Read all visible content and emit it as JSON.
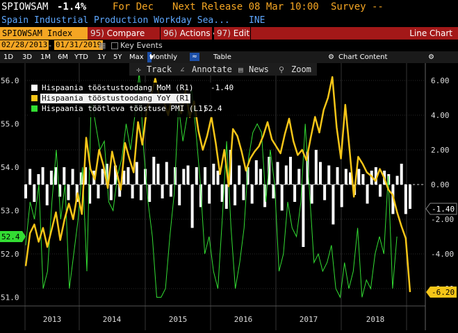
{
  "header": {
    "ticker": "SPIOWSAM",
    "value": "-1.4%",
    "period": "For Dec",
    "next_release": "Next Release 08 Mar 10:00",
    "survey": "Survey --",
    "description": "Spain Industrial Production Workday Sea...",
    "source": "INE"
  },
  "toolbar": {
    "index_label": "SPIOWSAM Index",
    "compare": "Compare",
    "actions": "Actions",
    "edit": "Edit",
    "chart_kind": "Line Chart",
    "compare_num": "95)",
    "actions_num": "96)",
    "edit_num": "97)",
    "date_from": "02/28/2013",
    "date_to": "01/31/2019",
    "key_events": "Key Events"
  },
  "range": {
    "buttons": [
      "1D",
      "3D",
      "1M",
      "6M",
      "YTD",
      "1Y",
      "5Y",
      "Max"
    ],
    "frequency": "Monthly",
    "table": "Table",
    "chart_content": "Chart Content"
  },
  "tools": {
    "track": "Track",
    "annotate": "Annotate",
    "news": "News",
    "zoom": "Zoom"
  },
  "legend": [
    {
      "name": "Hispaania tööstustoodang MoM (R1)",
      "last": "-1.40",
      "color": "#ffffff"
    },
    {
      "name": "Hispaania tööstustoodang YoY (R1)",
      "last": "-6.20",
      "color": "#f5c518"
    },
    {
      "name": "Hispaania töötleva tööstuse PMI (L1)",
      "last": "52.4",
      "color": "#33dd33"
    }
  ],
  "chart_data": {
    "type": "line",
    "x_labels": [
      "2013",
      "2014",
      "2015",
      "2016",
      "2017",
      "2018"
    ],
    "left_axis": {
      "ticks": [
        "56.0",
        "55.0",
        "54.0",
        "53.0",
        "52.0",
        "51.0"
      ],
      "range": [
        50.8,
        56.4
      ]
    },
    "right_axis": {
      "ticks": [
        "6.00",
        "4.00",
        "2.00",
        "0.00",
        "-2.00",
        "-4.00",
        "-6.00"
      ],
      "range": [
        -7.0,
        7.0
      ]
    },
    "last_values": {
      "mom": "-1.40",
      "yoy": "-6.20",
      "pmi": "52.4"
    },
    "series": [
      {
        "name": "Hispaania tööstustoodang MoM (R1)",
        "type": "bar",
        "values": [
          -0.8,
          0.9,
          -1.0,
          0.6,
          1.0,
          -1.2,
          0.8,
          1.0,
          -0.7,
          1.0,
          -0.9,
          0.9,
          -1.0,
          0.7,
          1.0,
          -1.1,
          0.8,
          -0.8,
          0.9,
          1.2,
          -0.9,
          1.1,
          -0.7,
          0.8,
          1.0,
          -0.8,
          1.3,
          -0.9,
          0.9,
          -1.0,
          1.6,
          1.2,
          -0.8,
          1.3,
          -0.7,
          1.0,
          -1.2,
          0.9,
          1.1,
          -2.5,
          1.0,
          -1.3,
          1.0,
          -1.1,
          1.2,
          0.8,
          -1.0,
          -1.4,
          2.0,
          -1.2,
          1.1,
          -0.9,
          1.0,
          -1.1,
          1.4,
          0.9,
          -1.3,
          1.6,
          -0.8,
          1.3,
          -1.5,
          1.1,
          1.6,
          -1.0,
          0.9,
          -3.6,
          1.9,
          -1.1,
          2.0,
          1.3,
          -0.9,
          1.1,
          -2.3,
          1.0,
          -1.3,
          0.9,
          0.7,
          -0.6,
          0.9,
          0.6,
          -1.1,
          0.8,
          1.0,
          -0.7,
          0.8,
          0.6,
          -1.7,
          0.5,
          1.2,
          -1.7,
          -1.4
        ]
      },
      {
        "name": "Hispaania tööstustoodang YoY (R1)",
        "type": "line",
        "values": [
          -4.7,
          -2.8,
          -2.3,
          -3.3,
          -2.5,
          -3.6,
          -2.6,
          -1.6,
          -3.2,
          -2.0,
          -1.1,
          -2.0,
          -0.5,
          -1.7,
          2.7,
          0.9,
          0.3,
          2.0,
          1.1,
          -0.2,
          1.9,
          0.8,
          -0.3,
          2.4,
          1.5,
          0.7,
          3.6,
          2.3,
          4.3,
          5.1,
          6.1,
          5.0,
          4.8,
          4.0,
          5.2,
          5.1,
          4.1,
          5.4,
          3.9,
          4.8,
          3.1,
          2.0,
          2.8,
          3.9,
          2.4,
          0.6,
          2.0,
          -0.1,
          3.2,
          2.8,
          1.9,
          0.8,
          1.5,
          1.9,
          2.2,
          2.8,
          3.6,
          2.6,
          2.2,
          1.8,
          2.9,
          3.8,
          2.5,
          1.7,
          2.0,
          1.4,
          2.7,
          3.9,
          3.0,
          4.3,
          5.0,
          6.2,
          3.3,
          1.5,
          4.6,
          2.0,
          -0.7,
          1.6,
          1.2,
          0.7,
          0.5,
          0.2,
          0.9,
          0.4,
          -0.3,
          -0.6,
          -1.6,
          -2.4,
          -3.1,
          -6.2
        ]
      },
      {
        "name": "Hispaania töötleva tööstuse PMI (L1)",
        "type": "line",
        "values": [
          52.2,
          53.2,
          52.8,
          53.6,
          51.2,
          51.6,
          53.2,
          54.4,
          52.8,
          53.6,
          51.2,
          52.0,
          52.8,
          54.0,
          51.6,
          55.6,
          55.0,
          54.4,
          54.6,
          53.2,
          53.0,
          53.8,
          54.2,
          55.0,
          54.4,
          55.2,
          56.2,
          54.4,
          53.2,
          52.4,
          51.0,
          51.0,
          51.2,
          52.4,
          53.4,
          55.4,
          54.6,
          55.2,
          55.8,
          54.8,
          53.6,
          52.0,
          52.4,
          51.6,
          51.2,
          52.8,
          54.6,
          52.6,
          51.2,
          51.8,
          52.6,
          54.2,
          54.8,
          55.0,
          54.8,
          53.2,
          54.4,
          53.6,
          51.6,
          52.0,
          53.2,
          52.6,
          52.4,
          53.2,
          55.0,
          53.4,
          51.8,
          52.0,
          51.6,
          51.8,
          52.2,
          51.2,
          51.0,
          51.8,
          51.2,
          51.6,
          52.6,
          51.0,
          51.4,
          51.2,
          52.0,
          52.4,
          52.0,
          53.8,
          51.2,
          52.4
        ]
      }
    ]
  }
}
